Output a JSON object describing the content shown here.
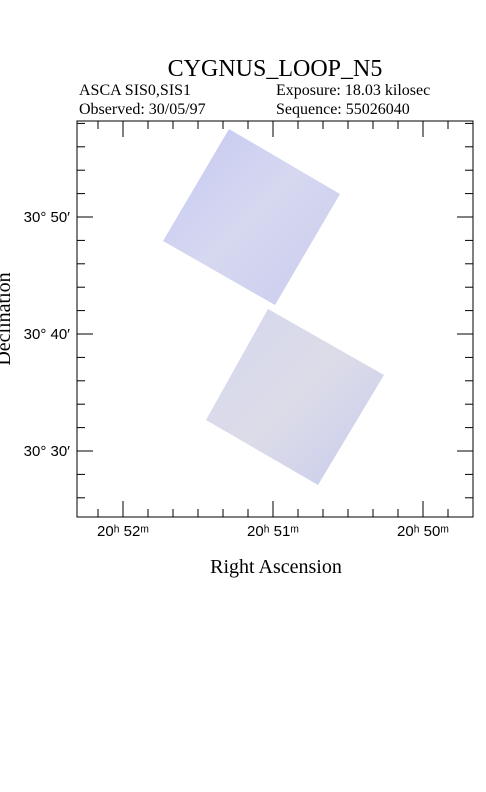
{
  "header": {
    "title": "CYGNUS_LOOP_N5",
    "instrument": "ASCA SIS0,SIS1",
    "exposure": "Exposure: 18.03 kilosec",
    "observed": "Observed: 30/05/97",
    "sequence": "Sequence: 55026040"
  },
  "axes": {
    "x_label": "Right Ascension",
    "y_label": "Declination",
    "x_ticks": [
      "20ʰ 52ᵐ",
      "20ʰ 51ᵐ",
      "20ʰ 50ᵐ"
    ],
    "y_ticks": [
      "30° 50′",
      "30° 40′",
      "30° 30′"
    ]
  }
}
